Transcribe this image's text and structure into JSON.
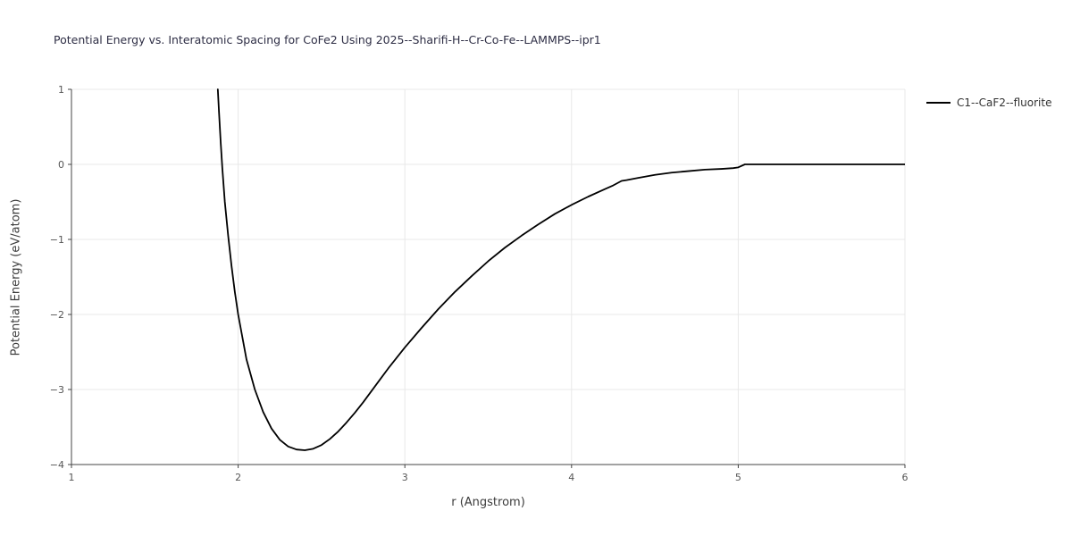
{
  "title": "Potential Energy vs. Interatomic Spacing for CoFe2 Using 2025--Sharifi-H--Cr-Co-Fe--LAMMPS--ipr1",
  "legend": {
    "label": "C1--CaF2--fluorite",
    "line_color": "#000000"
  },
  "colors": {
    "grid": "#e8e8e8",
    "axis": "#444444",
    "tick_label": "#555555",
    "curve": "#000000",
    "background": "#ffffff"
  },
  "chart_data": {
    "type": "line",
    "title": "Potential Energy vs. Interatomic Spacing for CoFe2 Using 2025--Sharifi-H--Cr-Co-Fe--LAMMPS--ipr1",
    "xlabel": "r (Angstrom)",
    "ylabel": "Potential Energy (eV/atom)",
    "xlim": [
      1,
      6
    ],
    "ylim": [
      -4,
      1
    ],
    "xticks": [
      1,
      2,
      3,
      4,
      5,
      6
    ],
    "xticklabels": [
      "1",
      "2",
      "3",
      "4",
      "5",
      "6"
    ],
    "yticks": [
      1,
      0,
      -1,
      -2,
      -3,
      -4
    ],
    "yticklabels": [
      "1",
      "0",
      "−1",
      "−2",
      "−3",
      "−4"
    ],
    "grid": true,
    "legend_position": "top-right",
    "series": [
      {
        "name": "C1--CaF2--fluorite",
        "color": "#000000",
        "x": [
          1.878,
          1.885,
          1.895,
          1.905,
          1.92,
          1.94,
          1.96,
          1.98,
          2.0,
          2.05,
          2.1,
          2.15,
          2.2,
          2.25,
          2.3,
          2.35,
          2.4,
          2.45,
          2.5,
          2.55,
          2.6,
          2.65,
          2.7,
          2.75,
          2.8,
          2.85,
          2.9,
          2.95,
          3.0,
          3.1,
          3.2,
          3.3,
          3.4,
          3.5,
          3.6,
          3.7,
          3.8,
          3.9,
          4.0,
          4.1,
          4.2,
          4.25,
          4.3,
          4.33,
          4.4,
          4.5,
          4.6,
          4.7,
          4.8,
          4.9,
          4.97,
          5.0,
          5.04,
          5.2,
          5.5,
          6.0
        ],
        "y": [
          1.0,
          0.7,
          0.3,
          -0.05,
          -0.5,
          -0.95,
          -1.35,
          -1.7,
          -2.0,
          -2.6,
          -3.0,
          -3.3,
          -3.52,
          -3.67,
          -3.76,
          -3.8,
          -3.81,
          -3.79,
          -3.74,
          -3.66,
          -3.56,
          -3.44,
          -3.31,
          -3.17,
          -3.02,
          -2.87,
          -2.72,
          -2.58,
          -2.44,
          -2.18,
          -1.93,
          -1.7,
          -1.49,
          -1.29,
          -1.11,
          -0.95,
          -0.8,
          -0.66,
          -0.54,
          -0.43,
          -0.33,
          -0.28,
          -0.22,
          -0.21,
          -0.18,
          -0.14,
          -0.11,
          -0.09,
          -0.07,
          -0.06,
          -0.05,
          -0.04,
          0.0,
          0.0,
          0.0,
          0.0
        ]
      }
    ]
  }
}
